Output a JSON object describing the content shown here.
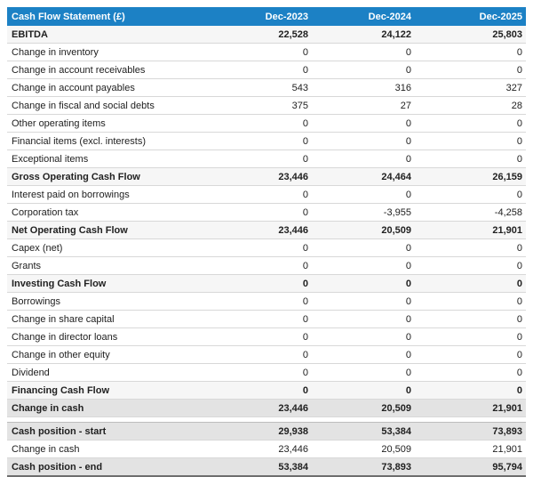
{
  "colors": {
    "header_bg": "#1c81c5",
    "header_text": "#ffffff",
    "subtotal_bg": "#f6f6f6",
    "strong_bg": "#e3e3e3",
    "row_border": "#d8d8d8",
    "text": "#212121"
  },
  "chart_data": {
    "type": "table",
    "title": "Cash Flow Statement (£)",
    "columns": [
      "Dec-2023",
      "Dec-2024",
      "Dec-2025"
    ],
    "sections": [
      {
        "rows": [
          {
            "label": "EBITDA",
            "values": [
              "22,528",
              "24,122",
              "25,803"
            ],
            "style": "subtotal"
          },
          {
            "label": "Change in inventory",
            "values": [
              "0",
              "0",
              "0"
            ],
            "style": "normal"
          },
          {
            "label": "Change in account receivables",
            "values": [
              "0",
              "0",
              "0"
            ],
            "style": "normal"
          },
          {
            "label": "Change in account payables",
            "values": [
              "543",
              "316",
              "327"
            ],
            "style": "normal"
          },
          {
            "label": "Change in fiscal and social debts",
            "values": [
              "375",
              "27",
              "28"
            ],
            "style": "normal"
          },
          {
            "label": "Other operating items",
            "values": [
              "0",
              "0",
              "0"
            ],
            "style": "normal"
          },
          {
            "label": "Financial items (excl. interests)",
            "values": [
              "0",
              "0",
              "0"
            ],
            "style": "normal"
          },
          {
            "label": "Exceptional items",
            "values": [
              "0",
              "0",
              "0"
            ],
            "style": "normal"
          },
          {
            "label": "Gross Operating Cash Flow",
            "values": [
              "23,446",
              "24,464",
              "26,159"
            ],
            "style": "subtotal"
          },
          {
            "label": "Interest paid on borrowings",
            "values": [
              "0",
              "0",
              "0"
            ],
            "style": "normal"
          },
          {
            "label": "Corporation tax",
            "values": [
              "0",
              "-3,955",
              "-4,258"
            ],
            "style": "normal"
          },
          {
            "label": "Net Operating Cash Flow",
            "values": [
              "23,446",
              "20,509",
              "21,901"
            ],
            "style": "subtotal"
          },
          {
            "label": "Capex (net)",
            "values": [
              "0",
              "0",
              "0"
            ],
            "style": "normal"
          },
          {
            "label": "Grants",
            "values": [
              "0",
              "0",
              "0"
            ],
            "style": "normal"
          },
          {
            "label": "Investing Cash Flow",
            "values": [
              "0",
              "0",
              "0"
            ],
            "style": "subtotal"
          },
          {
            "label": "Borrowings",
            "values": [
              "0",
              "0",
              "0"
            ],
            "style": "normal"
          },
          {
            "label": "Change in share capital",
            "values": [
              "0",
              "0",
              "0"
            ],
            "style": "normal"
          },
          {
            "label": "Change in director loans",
            "values": [
              "0",
              "0",
              "0"
            ],
            "style": "normal"
          },
          {
            "label": "Change in other equity",
            "values": [
              "0",
              "0",
              "0"
            ],
            "style": "normal"
          },
          {
            "label": "Dividend",
            "values": [
              "0",
              "0",
              "0"
            ],
            "style": "normal"
          },
          {
            "label": "Financing Cash Flow",
            "values": [
              "0",
              "0",
              "0"
            ],
            "style": "subtotal"
          },
          {
            "label": "Change in cash",
            "values": [
              "23,446",
              "20,509",
              "21,901"
            ],
            "style": "strong"
          }
        ]
      },
      {
        "rows": [
          {
            "label": "Cash position - start",
            "values": [
              "29,938",
              "53,384",
              "73,893"
            ],
            "style": "strong"
          },
          {
            "label": "Change in cash",
            "values": [
              "23,446",
              "20,509",
              "21,901"
            ],
            "style": "normal"
          },
          {
            "label": "Cash position - end",
            "values": [
              "53,384",
              "73,893",
              "95,794"
            ],
            "style": "strong-end"
          }
        ]
      }
    ]
  }
}
